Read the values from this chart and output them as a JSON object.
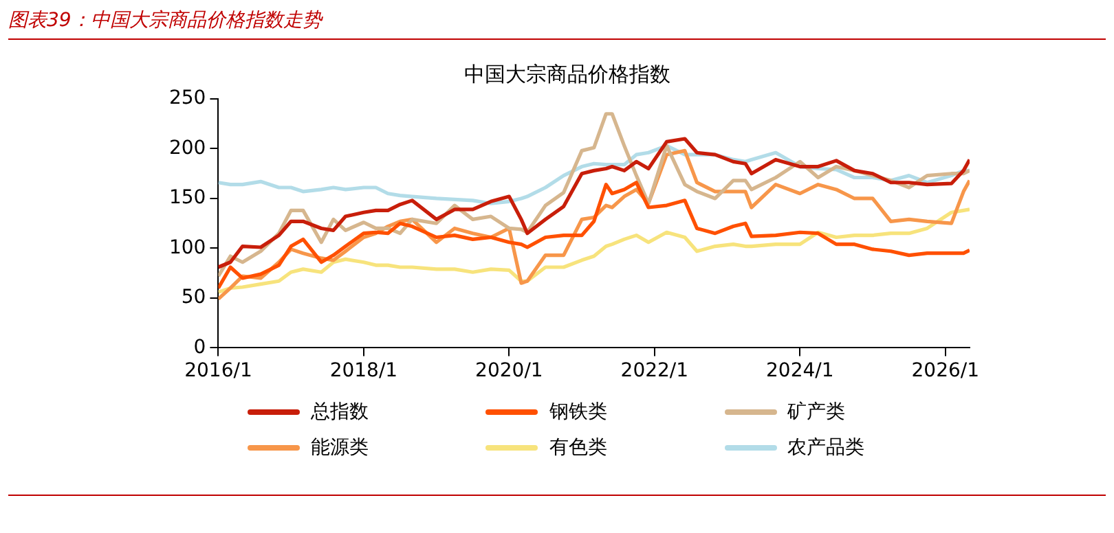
{
  "chart_data": {
    "type": "line",
    "title": "图表39：中国大宗商品价格指数走势",
    "subtitle": "中国大宗商品价格指数",
    "x": [
      "2016-01",
      "2016-03",
      "2016-05",
      "2016-08",
      "2016-11",
      "2017-01",
      "2017-03",
      "2017-06",
      "2017-08",
      "2017-10",
      "2018-01",
      "2018-03",
      "2018-05",
      "2018-07",
      "2018-09",
      "2019-01",
      "2019-04",
      "2019-07",
      "2019-10",
      "2020-01",
      "2020-03",
      "2020-04",
      "2020-07",
      "2020-10",
      "2021-01",
      "2021-03",
      "2021-05",
      "2021-06",
      "2021-08",
      "2021-10",
      "2021-12",
      "2022-03",
      "2022-06",
      "2022-08",
      "2022-11",
      "2023-02",
      "2023-04",
      "2023-05",
      "2023-09",
      "2024-01",
      "2024-04",
      "2024-07",
      "2024-10",
      "2025-01",
      "2025-04",
      "2025-07",
      "2025-10",
      "2026-02",
      "2026-04",
      "2026-05"
    ],
    "series": [
      {
        "name": "总指数",
        "color": "#c81e0a",
        "values": [
          81,
          86,
          102,
          101,
          113,
          127,
          127,
          120,
          118,
          132,
          136,
          138,
          138,
          144,
          148,
          129,
          139,
          139,
          147,
          152,
          129,
          115,
          129,
          142,
          175,
          178,
          180,
          182,
          178,
          187,
          180,
          207,
          210,
          196,
          194,
          187,
          185,
          175,
          189,
          182,
          182,
          188,
          178,
          175,
          166,
          166,
          164,
          165,
          178,
          189
        ]
      },
      {
        "name": "钢铁类",
        "color": "#ff5000",
        "values": [
          60,
          81,
          70,
          74,
          83,
          102,
          109,
          86,
          93,
          102,
          115,
          116,
          115,
          125,
          122,
          111,
          113,
          109,
          111,
          106,
          104,
          101,
          111,
          113,
          113,
          127,
          164,
          155,
          159,
          166,
          141,
          143,
          148,
          120,
          115,
          122,
          125,
          112,
          113,
          116,
          115,
          104,
          104,
          99,
          97,
          93,
          95,
          95,
          95,
          98
        ]
      },
      {
        "name": "矿产类",
        "color": "#d6b68e",
        "values": [
          72,
          92,
          86,
          97,
          115,
          138,
          138,
          106,
          129,
          118,
          126,
          120,
          120,
          115,
          129,
          125,
          143,
          129,
          132,
          120,
          119,
          116,
          143,
          156,
          198,
          201,
          235,
          235,
          203,
          173,
          145,
          203,
          164,
          157,
          150,
          168,
          168,
          159,
          171,
          187,
          171,
          182,
          178,
          173,
          168,
          161,
          173,
          175,
          175,
          178
        ]
      },
      {
        "name": "能源类",
        "color": "#f7964a",
        "values": [
          49,
          60,
          72,
          70,
          86,
          99,
          95,
          90,
          88,
          97,
          111,
          115,
          122,
          127,
          129,
          106,
          120,
          115,
          111,
          120,
          65,
          67,
          93,
          93,
          129,
          131,
          143,
          141,
          152,
          159,
          145,
          194,
          198,
          166,
          157,
          157,
          157,
          141,
          164,
          155,
          164,
          159,
          150,
          150,
          127,
          129,
          127,
          125,
          157,
          168
        ]
      },
      {
        "name": "有色类",
        "color": "#f7e37c",
        "values": [
          56,
          60,
          61,
          64,
          67,
          76,
          79,
          76,
          86,
          89,
          86,
          83,
          83,
          81,
          81,
          79,
          79,
          76,
          79,
          78,
          67,
          67,
          81,
          81,
          88,
          92,
          102,
          104,
          109,
          113,
          106,
          116,
          111,
          97,
          102,
          104,
          102,
          102,
          104,
          104,
          116,
          111,
          113,
          113,
          115,
          115,
          120,
          136,
          138,
          139
        ]
      },
      {
        "name": "农产品类",
        "color": "#b2dce8",
        "values": [
          166,
          164,
          164,
          167,
          161,
          161,
          157,
          159,
          161,
          159,
          161,
          161,
          155,
          153,
          152,
          150,
          149,
          148,
          145,
          147,
          150,
          152,
          161,
          173,
          182,
          185,
          184,
          184,
          184,
          194,
          196,
          203,
          194,
          194,
          194,
          189,
          187,
          189,
          196,
          182,
          180,
          179,
          171,
          171,
          168,
          173,
          166,
          173,
          178,
          178
        ]
      }
    ],
    "xlim": [
      "2016-01",
      "2026-05"
    ],
    "xticks": [
      {
        "value": "2016-01",
        "label": "2016/1"
      },
      {
        "value": "2018-01",
        "label": "2018/1"
      },
      {
        "value": "2020-01",
        "label": "2020/1"
      },
      {
        "value": "2022-01",
        "label": "2022/1"
      },
      {
        "value": "2024-01",
        "label": "2024/1"
      },
      {
        "value": "2026-01",
        "label": "2026/1"
      }
    ],
    "ylim": [
      0,
      250
    ],
    "yticks": [
      0,
      50,
      100,
      150,
      200,
      250
    ],
    "legend": "bottom",
    "line_style": "solid",
    "marker": "none"
  }
}
